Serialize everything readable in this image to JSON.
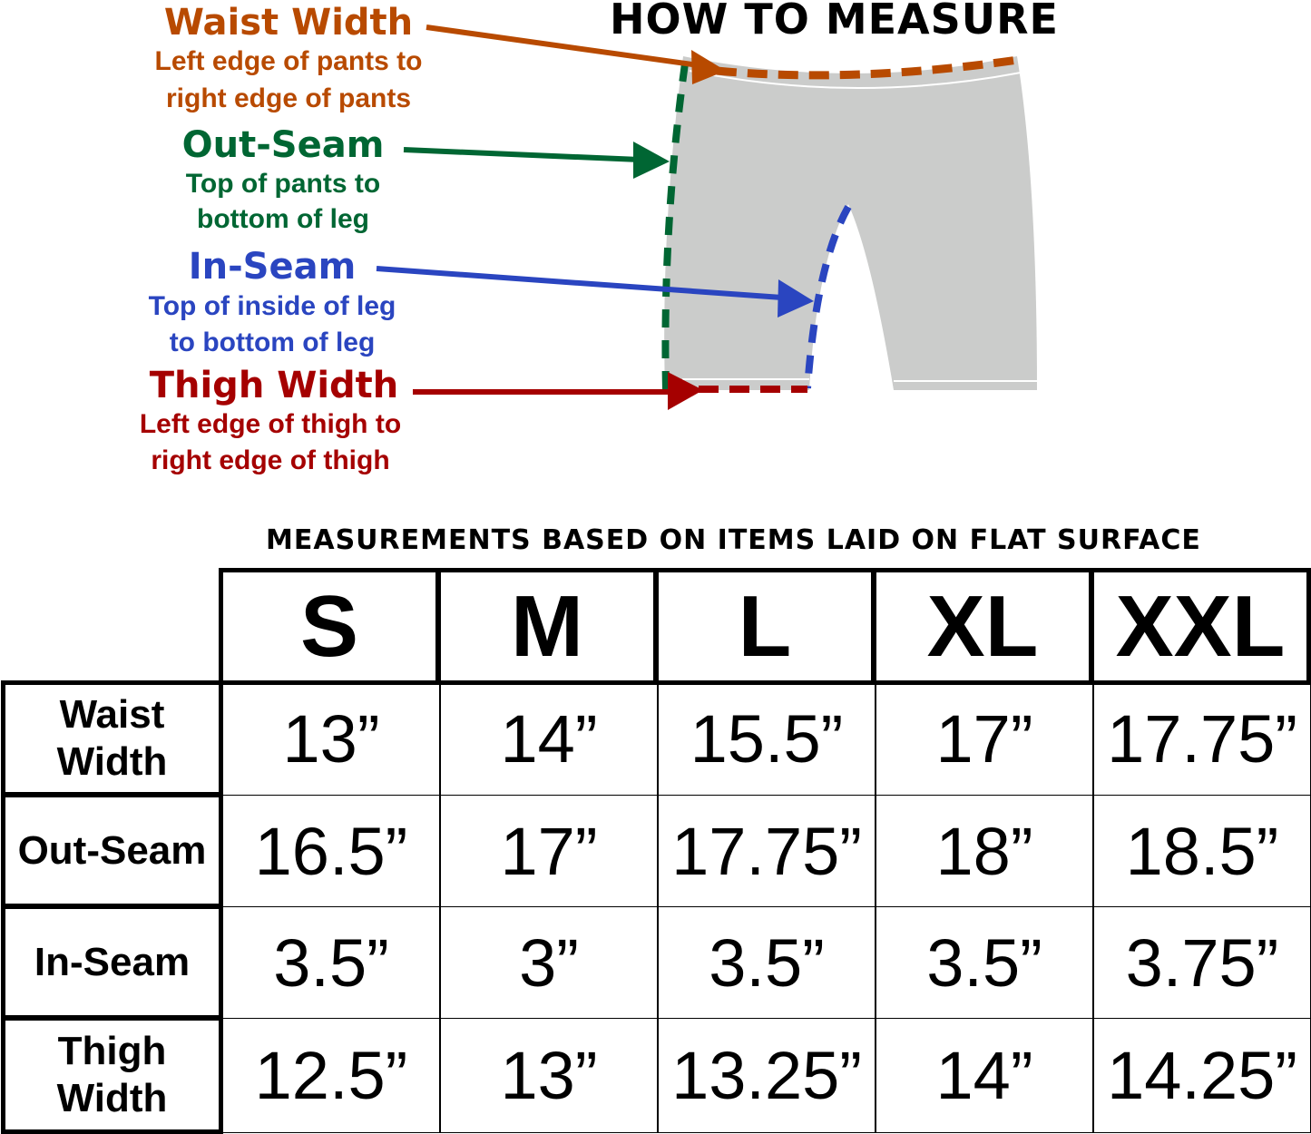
{
  "title": "HOW TO MEASURE",
  "colors": {
    "waist": "#b84a00",
    "outseam": "#006633",
    "inseam": "#2a45c0",
    "thigh": "#a50000",
    "garment": "#cbcccb"
  },
  "legend": [
    {
      "name": "Waist Width",
      "desc1": "Left edge of pants to",
      "desc2": "right edge of pants"
    },
    {
      "name": "Out-Seam",
      "desc1": "Top of pants to",
      "desc2": "bottom of leg"
    },
    {
      "name": "In-Seam",
      "desc1": "Top of inside of leg",
      "desc2": "to bottom of leg"
    },
    {
      "name": "Thigh Width",
      "desc1": "Left edge of thigh to",
      "desc2": "right edge of thigh"
    }
  ],
  "table": {
    "note": "MEASUREMENTS BASED ON ITEMS LAID ON FLAT SURFACE",
    "sizes": [
      "S",
      "M",
      "L",
      "XL",
      "XXL"
    ],
    "rows": [
      {
        "label": "Waist Width",
        "values": [
          "13”",
          "14”",
          "15.5”",
          "17”",
          "17.75”"
        ]
      },
      {
        "label": "Out-Seam",
        "values": [
          "16.5”",
          "17”",
          "17.75”",
          "18”",
          "18.5”"
        ]
      },
      {
        "label": "In-Seam",
        "values": [
          "3.5”",
          "3”",
          "3.5”",
          "3.5”",
          "3.75”"
        ]
      },
      {
        "label": "Thigh Width",
        "values": [
          "12.5”",
          "13”",
          "13.25”",
          "14”",
          "14.25”"
        ]
      }
    ]
  }
}
